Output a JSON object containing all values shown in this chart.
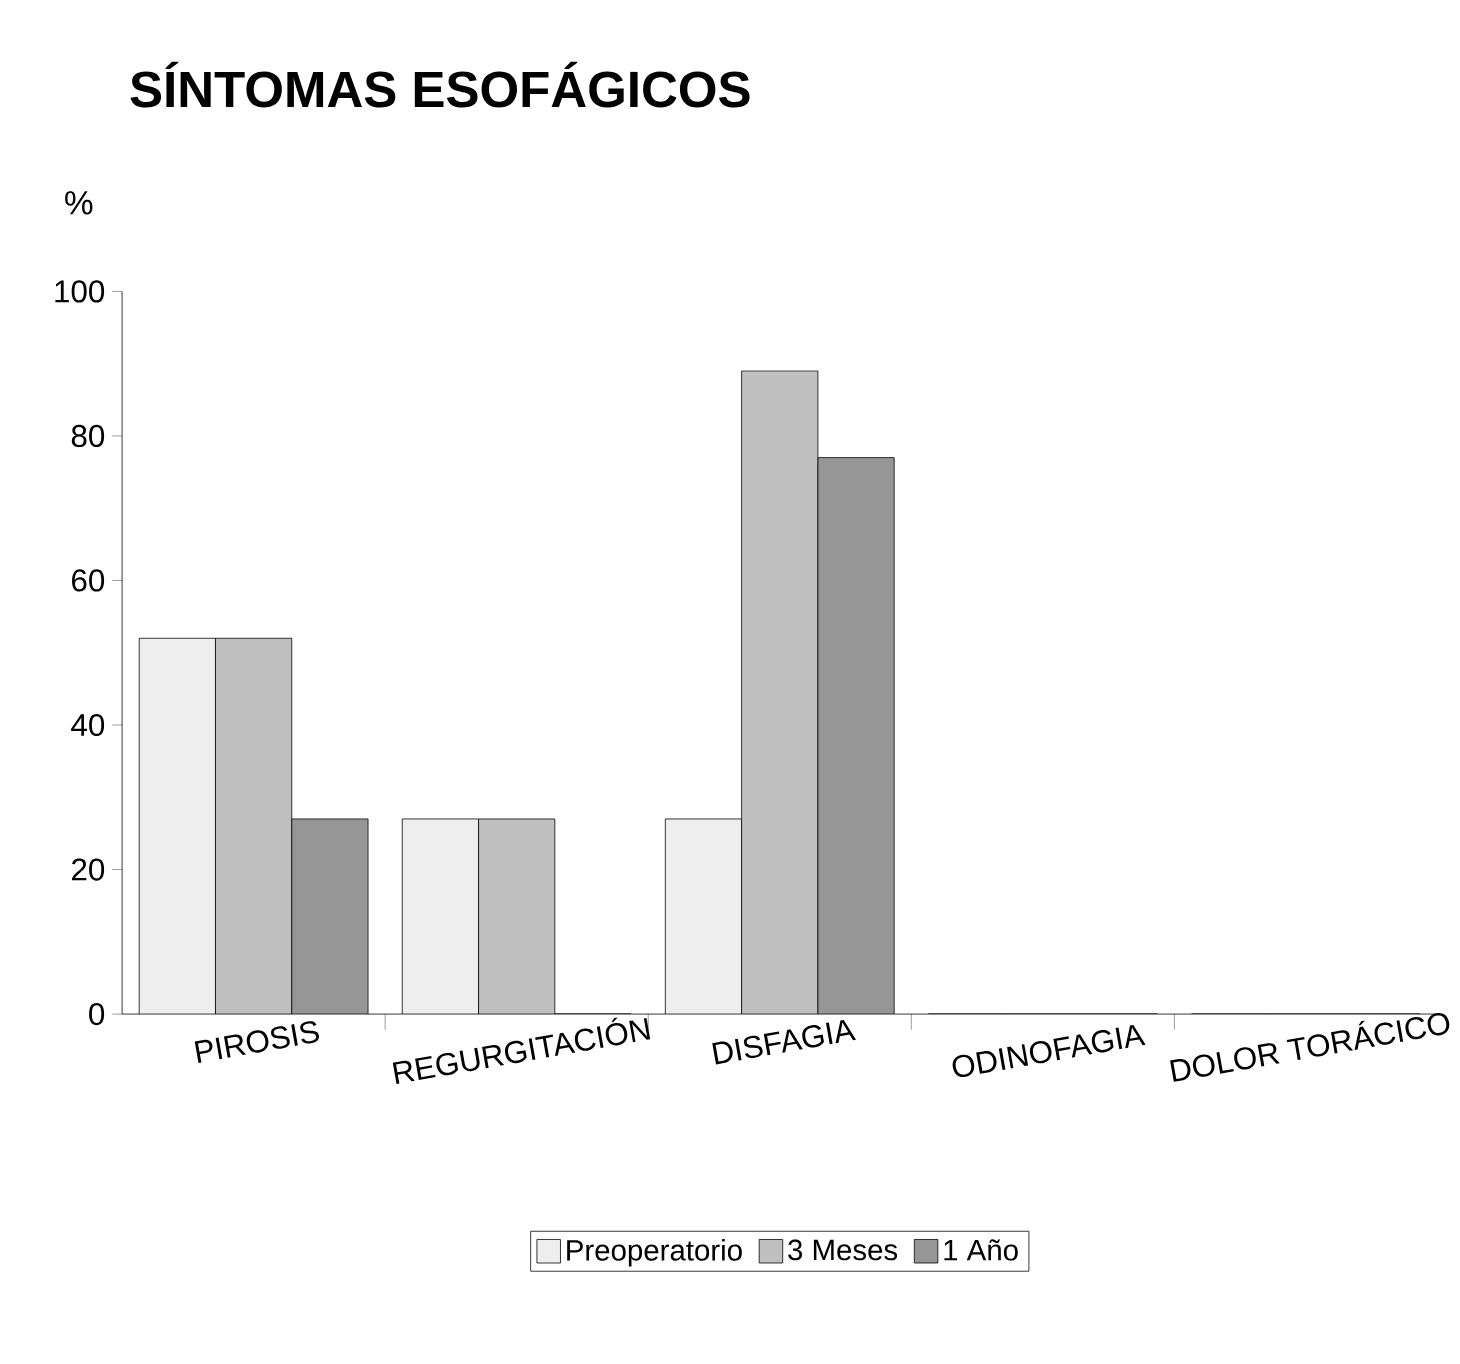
{
  "chart_data": {
    "type": "bar",
    "title": "SÍNTOMAS ESOFÁGICOS",
    "ylabel": "%",
    "categories": [
      "PIROSIS",
      "REGURGITACIÓN",
      "DISFAGIA",
      "ODINOFAGIA",
      "DOLOR TORÁCICO"
    ],
    "series": [
      {
        "name": "Preoperatorio",
        "color": "#eeeeee",
        "values": [
          52,
          27,
          27,
          0,
          0
        ]
      },
      {
        "name": "3 Meses",
        "color": "#c0c0c0",
        "values": [
          52,
          27,
          89,
          0,
          0
        ]
      },
      {
        "name": "1 Año",
        "color": "#969696",
        "values": [
          27,
          0,
          77,
          0,
          0
        ]
      }
    ],
    "ylim": [
      0,
      100
    ],
    "yticks": [
      0,
      20,
      40,
      60,
      80,
      100
    ],
    "grid": false,
    "legend": "bottom"
  }
}
